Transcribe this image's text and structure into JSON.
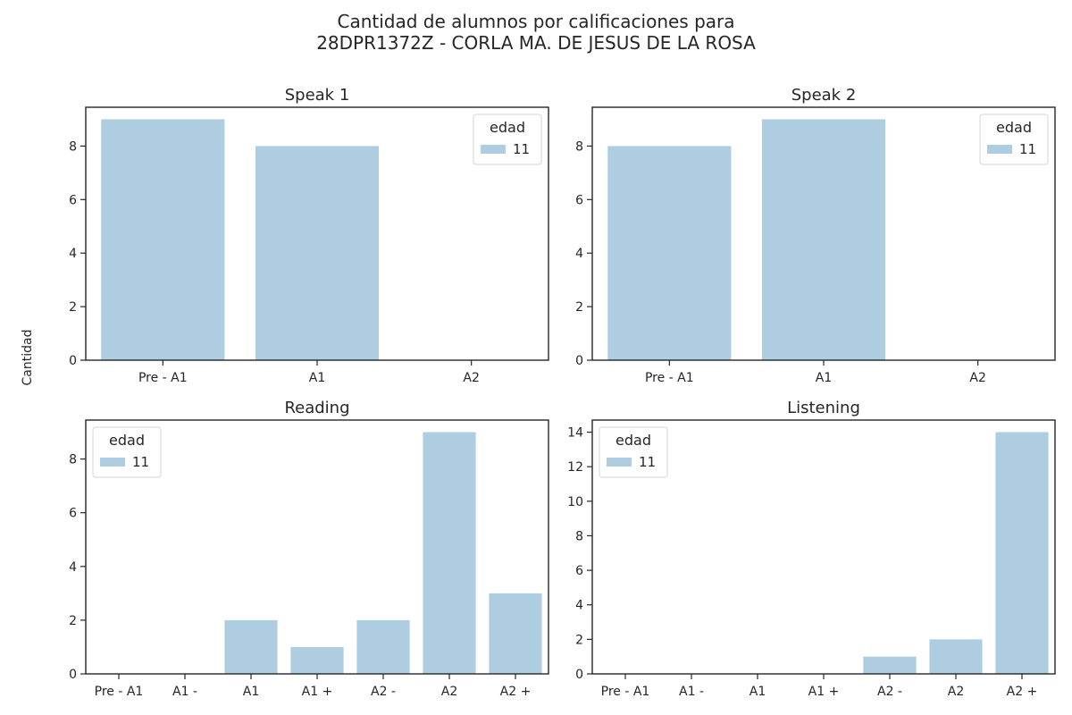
{
  "figure": {
    "title_line1": "Cantidad de alumnos por calificaciones para",
    "title_line2": "28DPR1372Z - CORLA MA. DE JESUS DE LA ROSA",
    "ylabel": "Cantidad",
    "bar_color": "#aecde0",
    "axis_color": "#262626"
  },
  "chart_data": [
    {
      "type": "bar",
      "title": "Speak 1",
      "categories": [
        "Pre - A1",
        "A1",
        "A2"
      ],
      "series": [
        {
          "name": "11",
          "values": [
            9,
            8,
            0
          ]
        }
      ],
      "ylim": [
        0,
        9.45
      ],
      "yticks": [
        0,
        2,
        4,
        6,
        8
      ],
      "legend": {
        "title": "edad",
        "labels": [
          "11"
        ],
        "placement": "top-right"
      },
      "grid": false
    },
    {
      "type": "bar",
      "title": "Speak 2",
      "categories": [
        "Pre - A1",
        "A1",
        "A2"
      ],
      "series": [
        {
          "name": "11",
          "values": [
            8,
            9,
            0
          ]
        }
      ],
      "ylim": [
        0,
        9.45
      ],
      "yticks": [
        0,
        2,
        4,
        6,
        8
      ],
      "legend": {
        "title": "edad",
        "labels": [
          "11"
        ],
        "placement": "top-right"
      },
      "grid": false
    },
    {
      "type": "bar",
      "title": "Reading",
      "categories": [
        "Pre - A1",
        "A1 -",
        "A1",
        "A1 +",
        "A2 -",
        "A2",
        "A2 +"
      ],
      "series": [
        {
          "name": "11",
          "values": [
            0,
            0,
            2,
            1,
            2,
            9,
            3
          ]
        }
      ],
      "ylim": [
        0,
        9.45
      ],
      "yticks": [
        0,
        2,
        4,
        6,
        8
      ],
      "legend": {
        "title": "edad",
        "labels": [
          "11"
        ],
        "placement": "top-left"
      },
      "grid": false
    },
    {
      "type": "bar",
      "title": "Listening",
      "categories": [
        "Pre - A1",
        "A1 -",
        "A1",
        "A1 +",
        "A2 -",
        "A2",
        "A2 +"
      ],
      "series": [
        {
          "name": "11",
          "values": [
            0,
            0,
            0,
            0,
            1,
            2,
            14
          ]
        }
      ],
      "ylim": [
        0,
        14.7
      ],
      "yticks": [
        0,
        2,
        4,
        6,
        8,
        10,
        12,
        14
      ],
      "legend": {
        "title": "edad",
        "labels": [
          "11"
        ],
        "placement": "top-left"
      },
      "grid": false
    }
  ]
}
